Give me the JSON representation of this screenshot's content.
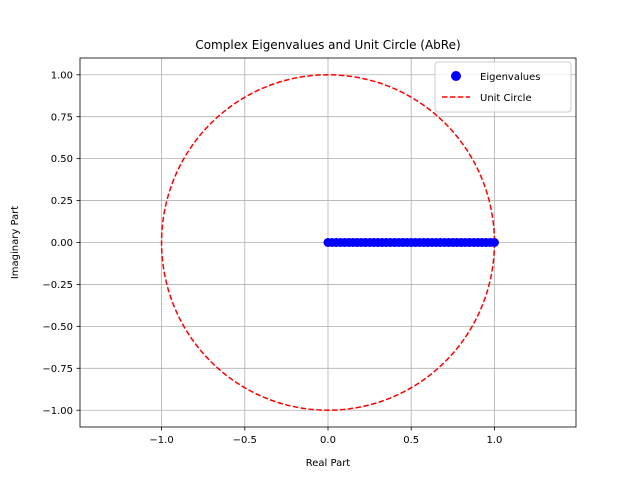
{
  "chart_data": {
    "type": "scatter",
    "title": "Complex Eigenvalues and Unit Circle (AbRe)",
    "xlabel": "Real Part",
    "ylabel": "Imaginary Part",
    "xlim": [
      -1.49,
      1.49
    ],
    "ylim": [
      -1.1,
      1.1
    ],
    "x_ticks": [
      -1.0,
      -0.5,
      0.0,
      0.5,
      1.0
    ],
    "x_tick_labels": [
      "−1.0",
      "−0.5",
      "0.0",
      "0.5",
      "1.0"
    ],
    "y_ticks": [
      -1.0,
      -0.75,
      -0.5,
      -0.25,
      0.0,
      0.25,
      0.5,
      0.75,
      1.0
    ],
    "y_tick_labels": [
      "−1.00",
      "−0.75",
      "−0.50",
      "−0.25",
      "0.00",
      "0.25",
      "0.50",
      "0.75",
      "1.00"
    ],
    "grid": true,
    "legend_position": "upper-right",
    "series": [
      {
        "name": "Eigenvalues",
        "kind": "scatter",
        "color": "#0000ff",
        "x": [
          0.0,
          0.025,
          0.05,
          0.075,
          0.1,
          0.125,
          0.15,
          0.175,
          0.2,
          0.225,
          0.25,
          0.275,
          0.3,
          0.325,
          0.35,
          0.375,
          0.4,
          0.425,
          0.45,
          0.475,
          0.5,
          0.525,
          0.55,
          0.575,
          0.6,
          0.625,
          0.65,
          0.675,
          0.7,
          0.725,
          0.75,
          0.775,
          0.8,
          0.825,
          0.85,
          0.875,
          0.9,
          0.925,
          0.95,
          0.975,
          1.0
        ],
        "y": [
          0,
          0,
          0,
          0,
          0,
          0,
          0,
          0,
          0,
          0,
          0,
          0,
          0,
          0,
          0,
          0,
          0,
          0,
          0,
          0,
          0,
          0,
          0,
          0,
          0,
          0,
          0,
          0,
          0,
          0,
          0,
          0,
          0,
          0,
          0,
          0,
          0,
          0,
          0,
          0,
          0
        ]
      },
      {
        "name": "Unit Circle",
        "kind": "line",
        "style": "dashed",
        "color": "#ff0000",
        "radius": 1.0,
        "center": [
          0,
          0
        ]
      }
    ]
  }
}
